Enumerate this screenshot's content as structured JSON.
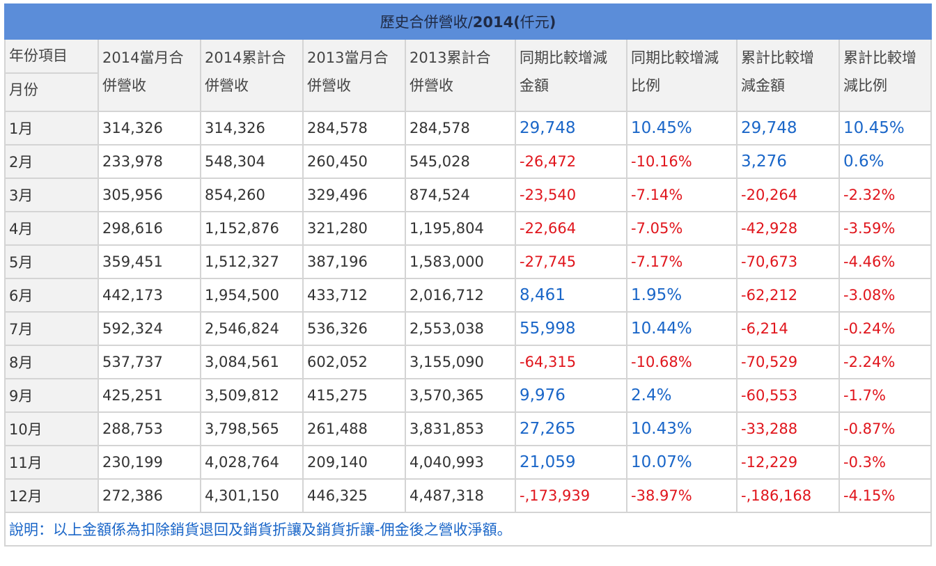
{
  "title": {
    "prefix": "歷史合併營收/",
    "year": "2014",
    "unit_prefix": "(",
    "unit": "仟元",
    "unit_suffix": ")"
  },
  "headers": {
    "corner_top": "年份項目",
    "corner_bottom": "月份",
    "columns": [
      [
        "2014當月合",
        "併營收"
      ],
      [
        "2014累計合",
        "併營收"
      ],
      [
        "2013當月合",
        "併營收"
      ],
      [
        "2013累計合",
        "併營收"
      ],
      [
        "同期比較增減",
        "金額"
      ],
      [
        "同期比較增減",
        "比例"
      ],
      [
        "累計比較增",
        "減金額"
      ],
      [
        "累計比較增",
        "減比例"
      ]
    ]
  },
  "rows": [
    {
      "month": "1月",
      "c": [
        "314,326",
        "314,326",
        "284,578",
        "284,578",
        "29,748",
        "10.45%",
        "29,748",
        "10.45%"
      ]
    },
    {
      "month": "2月",
      "c": [
        "233,978",
        "548,304",
        "260,450",
        "545,028",
        "-26,472",
        "-10.16%",
        "3,276",
        "0.6%"
      ]
    },
    {
      "month": "3月",
      "c": [
        "305,956",
        "854,260",
        "329,496",
        "874,524",
        "-23,540",
        "-7.14%",
        "-20,264",
        "-2.32%"
      ]
    },
    {
      "month": "4月",
      "c": [
        "298,616",
        "1,152,876",
        "321,280",
        "1,195,804",
        "-22,664",
        "-7.05%",
        "-42,928",
        "-3.59%"
      ]
    },
    {
      "month": "5月",
      "c": [
        "359,451",
        "1,512,327",
        "387,196",
        "1,583,000",
        "-27,745",
        "-7.17%",
        "-70,673",
        "-4.46%"
      ]
    },
    {
      "month": "6月",
      "c": [
        "442,173",
        "1,954,500",
        "433,712",
        "2,016,712",
        "8,461",
        "1.95%",
        "-62,212",
        "-3.08%"
      ]
    },
    {
      "month": "7月",
      "c": [
        "592,324",
        "2,546,824",
        "536,326",
        "2,553,038",
        "55,998",
        "10.44%",
        "-6,214",
        "-0.24%"
      ]
    },
    {
      "month": "8月",
      "c": [
        "537,737",
        "3,084,561",
        "602,052",
        "3,155,090",
        "-64,315",
        "-10.68%",
        "-70,529",
        "-2.24%"
      ]
    },
    {
      "month": "9月",
      "c": [
        "425,251",
        "3,509,812",
        "415,275",
        "3,570,365",
        "9,976",
        "2.4%",
        "-60,553",
        "-1.7%"
      ]
    },
    {
      "month": "10月",
      "c": [
        "288,753",
        "3,798,565",
        "261,488",
        "3,831,853",
        "27,265",
        "10.43%",
        "-33,288",
        "-0.87%"
      ]
    },
    {
      "month": "11月",
      "c": [
        "230,199",
        "4,028,764",
        "209,140",
        "4,040,993",
        "21,059",
        "10.07%",
        "-12,229",
        "-0.3%"
      ]
    },
    {
      "month": "12月",
      "c": [
        "272,386",
        "4,301,150",
        "446,325",
        "4,487,318",
        "-,173,939",
        "-38.97%",
        "-,186,168",
        "-4.15%"
      ]
    }
  ],
  "note": "說明：以上金額係為扣除銷貨退回及銷貨折讓及銷貨折讓-佣金後之營收淨額。",
  "colors": {
    "title_bg": "#5b8dd9",
    "positive": "#1a66c8",
    "negative": "#e0151c",
    "header_bg": "#f2f2f2",
    "border": "#d4d4d4"
  }
}
